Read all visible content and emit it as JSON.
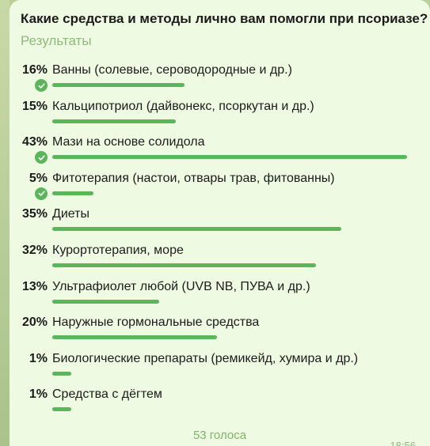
{
  "poll": {
    "question": "Какие средства и методы лично вам помогли при псориазе?",
    "subtitle": "Результаты",
    "votes_text": "53 голоса",
    "time": "18:56",
    "bar_color": "#5bb55b",
    "options": [
      {
        "percent_label": "16%",
        "percent": 16,
        "label": "Ванны (солевые, сероводородные и др.)",
        "chosen": true
      },
      {
        "percent_label": "15%",
        "percent": 15,
        "label": "Кальципотриол (дайвонекс, псоркутан и др.)",
        "chosen": false
      },
      {
        "percent_label": "43%",
        "percent": 43,
        "label": "Мази на основе солидола",
        "chosen": true
      },
      {
        "percent_label": "5%",
        "percent": 5,
        "label": "Фитотерапия (настои, отвары трав, фитованны)",
        "chosen": true
      },
      {
        "percent_label": "35%",
        "percent": 35,
        "label": "Диеты",
        "chosen": false
      },
      {
        "percent_label": "32%",
        "percent": 32,
        "label": "Курортотерапия, море",
        "chosen": false
      },
      {
        "percent_label": "13%",
        "percent": 13,
        "label": "Ультрафиолет любой (UVB NB, ПУВА и др.)",
        "chosen": false
      },
      {
        "percent_label": "20%",
        "percent": 20,
        "label": "Наружные гормональные средства",
        "chosen": false
      },
      {
        "percent_label": "1%",
        "percent": 1,
        "label": "Биологические препараты (ремикейд, хумира и др.)",
        "chosen": false
      },
      {
        "percent_label": "1%",
        "percent": 1,
        "label": "Средства с дёгтем",
        "chosen": false
      }
    ]
  }
}
